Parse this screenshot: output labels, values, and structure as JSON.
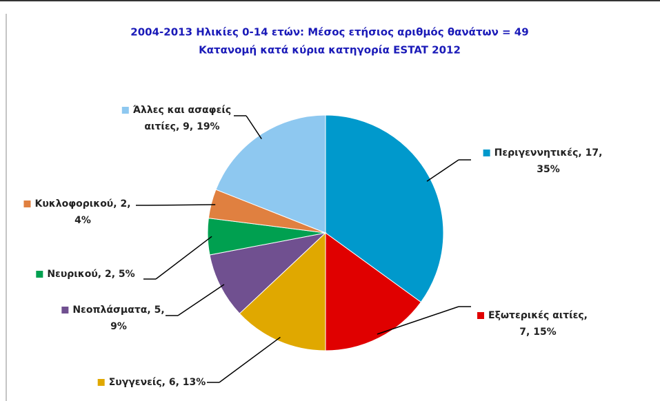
{
  "chart_data": {
    "type": "pie",
    "title": "2004-2013    Ηλικίες 0-14 ετών:    Μέσος ετήσιος αριθμός θανάτων = 49",
    "subtitle": "Κατανομή κατά κύρια κατηγορία ESTAT 2012",
    "values": [
      35,
      15,
      13,
      9,
      5,
      4,
      19
    ],
    "value_labels": [
      [
        "Περιγεννητικές, 17,",
        "35%"
      ],
      [
        "Εξωτερικές αιτίες,",
        "7, 15%"
      ],
      [
        "Συγγενείς, 6, 13%"
      ],
      [
        "Νεοπλάσματα, 5,",
        "9%"
      ],
      [
        "Νευρικού, 2, 5%"
      ],
      [
        "Κυκλοφορικού, 2,",
        "4%"
      ],
      [
        "Άλλες και ασαφείς",
        "αιτίες, 9, 19%"
      ]
    ],
    "colors": [
      "#0099cc",
      "#e00000",
      "#e0a800",
      "#705090",
      "#00a050",
      "#e08040",
      "#8ec8f0"
    ]
  }
}
